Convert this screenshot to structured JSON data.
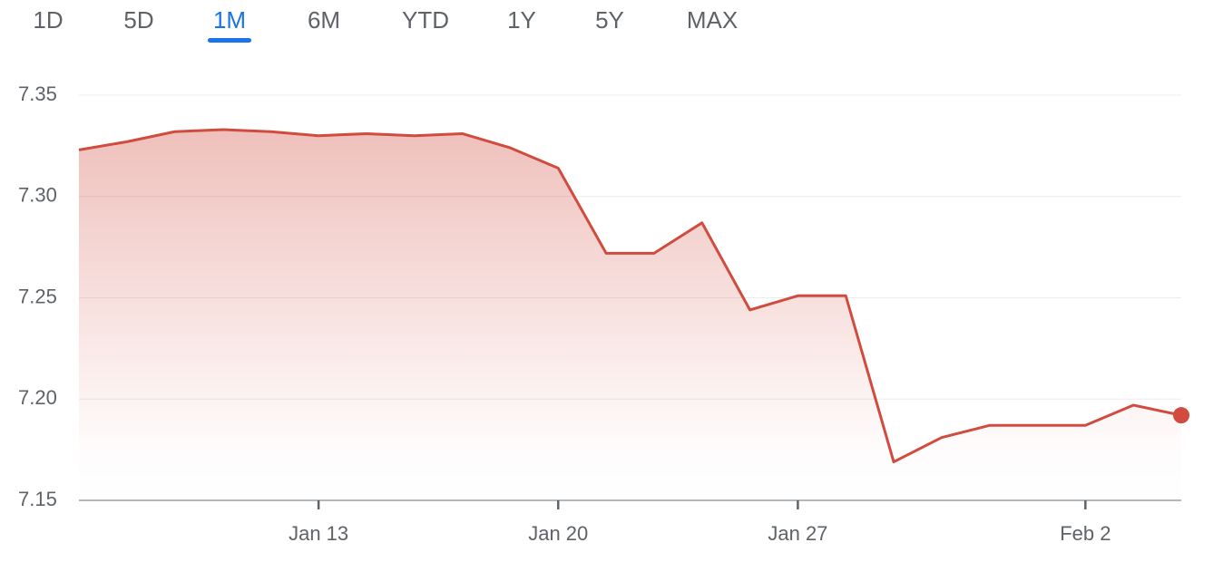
{
  "tabs": [
    "1D",
    "5D",
    "1M",
    "6M",
    "YTD",
    "1Y",
    "5Y",
    "MAX"
  ],
  "selected_tab": 2,
  "chart_data": {
    "type": "area-line",
    "categories": [
      null,
      null,
      null,
      null,
      null,
      "Jan 13",
      null,
      null,
      null,
      null,
      "Jan 20",
      null,
      null,
      null,
      null,
      "Jan 27",
      null,
      null,
      null,
      null,
      null,
      "Feb 2",
      null,
      null
    ],
    "series": [
      {
        "color": "#d14b3e",
        "values": [
          7.323,
          7.327,
          7.332,
          7.333,
          7.332,
          7.33,
          7.331,
          7.33,
          7.331,
          7.324,
          7.314,
          7.272,
          7.272,
          7.287,
          7.244,
          7.251,
          7.251,
          7.169,
          7.181,
          7.187,
          7.187,
          7.187,
          7.197,
          7.192
        ]
      }
    ],
    "ylim": [
      7.15,
      7.35
    ],
    "yticks": [
      7.15,
      {
        "value": 7.2,
        "label": "7.20"
      },
      7.25,
      {
        "value": 7.3,
        "label": "7.30"
      },
      7.35
    ],
    "grid": true
  }
}
